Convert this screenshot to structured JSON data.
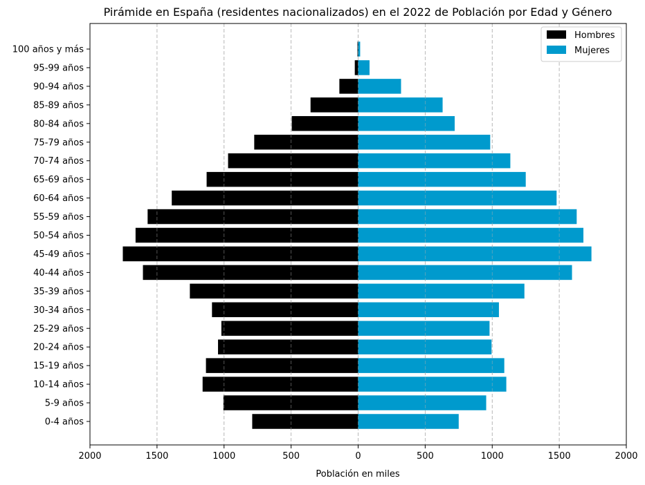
{
  "chart_data": {
    "type": "bar",
    "orientation": "horizontal-diverging",
    "title": "Pirámide en España (residentes nacionalizados) en el 2022 de Población por Edad y Género",
    "xlabel": "Población en miles",
    "ylabel": "",
    "xlim": [
      -2000,
      2000
    ],
    "x_ticks": [
      -2000,
      -1500,
      -1000,
      -500,
      0,
      500,
      1000,
      1500,
      2000
    ],
    "x_tick_labels": [
      "2000",
      "1500",
      "1000",
      "500",
      "0",
      "500",
      "1000",
      "1500",
      "2000"
    ],
    "grid": "vertical dashed",
    "legend_position": "top-right",
    "categories": [
      "0-4 años",
      "5-9 años",
      "10-14 años",
      "15-19 años",
      "20-24 años",
      "25-29 años",
      "30-34 años",
      "35-39 años",
      "40-44 años",
      "45-49 años",
      "50-54 años",
      "55-59 años",
      "60-64 años",
      "65-69 años",
      "70-74 años",
      "75-79 años",
      "80-84 años",
      "85-89 años",
      "90-94 años",
      "95-99 años",
      "100 años y más"
    ],
    "series": [
      {
        "name": "Hombres",
        "color": "#000000",
        "values": [
          790,
          1005,
          1160,
          1135,
          1045,
          1020,
          1090,
          1255,
          1605,
          1755,
          1660,
          1570,
          1390,
          1130,
          970,
          775,
          495,
          355,
          140,
          25,
          5
        ]
      },
      {
        "name": "Mujeres",
        "color": "#009ACD",
        "values": [
          750,
          955,
          1105,
          1090,
          995,
          980,
          1050,
          1240,
          1595,
          1740,
          1680,
          1630,
          1480,
          1250,
          1135,
          985,
          720,
          630,
          320,
          85,
          15
        ]
      }
    ]
  }
}
